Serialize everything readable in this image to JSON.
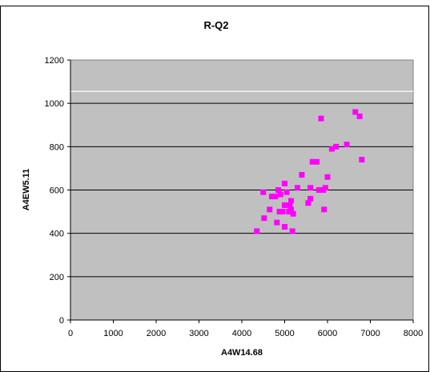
{
  "chart_data": {
    "type": "scatter",
    "title": "R-Q2",
    "xlabel": "A4W14.68",
    "ylabel": "A4EW5.11",
    "xlim": [
      0,
      8000
    ],
    "ylim": [
      0,
      1200
    ],
    "xticks": [
      0,
      1000,
      2000,
      3000,
      4000,
      5000,
      6000,
      7000,
      8000
    ],
    "yticks": [
      0,
      200,
      400,
      600,
      800,
      1000,
      1200
    ],
    "grid": true,
    "legend": "none",
    "colors": {
      "plot_area": "#c0c0c0",
      "marker": "#ff00ff",
      "gridline": "#000000",
      "reference_line": "#ffffff"
    },
    "reference_line_y": 1055,
    "series": [
      {
        "points": [
          [
            4350,
            410
          ],
          [
            4500,
            590
          ],
          [
            4520,
            470
          ],
          [
            4650,
            510
          ],
          [
            4700,
            570
          ],
          [
            4780,
            570
          ],
          [
            4820,
            450
          ],
          [
            4850,
            600
          ],
          [
            4880,
            500
          ],
          [
            4900,
            580
          ],
          [
            4950,
            500
          ],
          [
            5000,
            430
          ],
          [
            5000,
            530
          ],
          [
            5000,
            630
          ],
          [
            5050,
            590
          ],
          [
            5100,
            500
          ],
          [
            5120,
            530
          ],
          [
            5150,
            510
          ],
          [
            5150,
            550
          ],
          [
            5180,
            410
          ],
          [
            5200,
            490
          ],
          [
            5300,
            610
          ],
          [
            5400,
            670
          ],
          [
            5550,
            540
          ],
          [
            5600,
            560
          ],
          [
            5600,
            610
          ],
          [
            5650,
            730
          ],
          [
            5750,
            730
          ],
          [
            5800,
            600
          ],
          [
            5850,
            930
          ],
          [
            5900,
            600
          ],
          [
            5920,
            510
          ],
          [
            5950,
            610
          ],
          [
            6000,
            660
          ],
          [
            6100,
            790
          ],
          [
            6200,
            800
          ],
          [
            6450,
            810
          ],
          [
            6650,
            960
          ],
          [
            6750,
            940
          ],
          [
            6800,
            740
          ]
        ]
      }
    ]
  }
}
